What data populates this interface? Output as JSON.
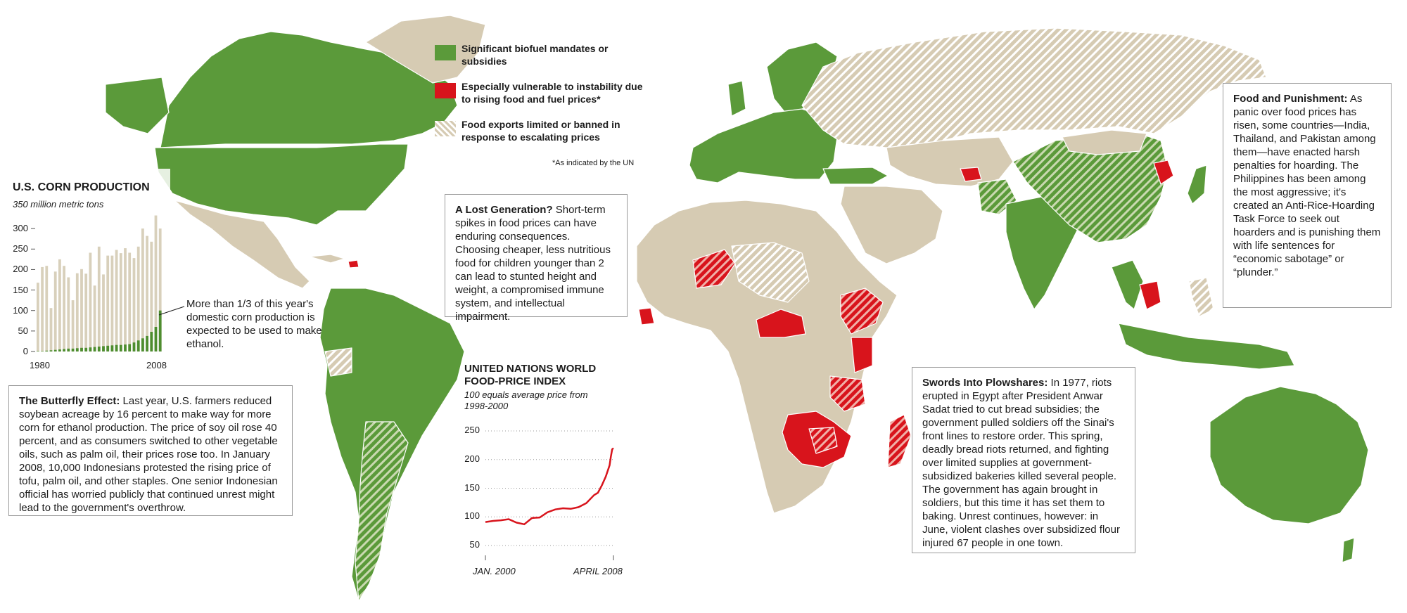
{
  "legend": {
    "biofuel": "Significant biofuel mandates or subsidies",
    "vulnerable": "Especially vulnerable to instability due to rising food and fuel prices*",
    "exports": "Food exports limited or banned in response to escalating prices",
    "footnote": "*As indicated by the UN"
  },
  "colors": {
    "biofuel": "#5b9a3a",
    "vulnerable": "#d8141c",
    "land": "#d6cbb3",
    "hatch": "#ffffff",
    "ocean": "#ffffff",
    "corn_light": "#d8d0bb",
    "corn_ethanol": "#4e8d2f",
    "fpi_line": "#d8141c"
  },
  "corn_chart": {
    "title": "U.S. CORN PRODUCTION",
    "subtitle": "350 million metric tons",
    "y_ticks": [
      "300",
      "250",
      "200",
      "150",
      "100",
      "50",
      "0"
    ],
    "x_labels": [
      "1980",
      "2008"
    ],
    "note": "More than 1/3 of this year's domestic corn production is expected to be used to make ethanol."
  },
  "fpi_chart": {
    "title": "UNITED NATIONS WORLD FOOD-PRICE INDEX",
    "subtitle": "100 equals average price from 1998-2000",
    "y_ticks": [
      "250",
      "200",
      "150",
      "100",
      "50"
    ],
    "x_labels": [
      "JAN. 2000",
      "APRIL 2008"
    ]
  },
  "chart_data": [
    {
      "type": "bar",
      "title": "U.S. CORN PRODUCTION",
      "ylabel": "350 million metric tons",
      "ylim": [
        0,
        350
      ],
      "categories": [
        1980,
        1981,
        1982,
        1983,
        1984,
        1985,
        1986,
        1987,
        1988,
        1989,
        1990,
        1991,
        1992,
        1993,
        1994,
        1995,
        1996,
        1997,
        1998,
        1999,
        2000,
        2001,
        2002,
        2003,
        2004,
        2005,
        2006,
        2007,
        2008
      ],
      "series": [
        {
          "values": [
            168,
            206,
            209,
            106,
            195,
            225,
            209,
            181,
            125,
            191,
            201,
            190,
            241,
            161,
            256,
            188,
            234,
            234,
            248,
            240,
            252,
            241,
            228,
            256,
            300,
            282,
            268,
            332,
            300
          ]
        },
        {
          "values": [
            1,
            1,
            2,
            3,
            4,
            5,
            6,
            7,
            7,
            8,
            9,
            9,
            10,
            11,
            12,
            13,
            14,
            15,
            16,
            16,
            17,
            18,
            22,
            27,
            32,
            38,
            48,
            60,
            100
          ]
        }
      ],
      "x_labels": [
        "1980",
        "2008"
      ]
    },
    {
      "type": "line",
      "title": "UNITED NATIONS WORLD FOOD-PRICE INDEX",
      "ylabel": "100 equals average price from 1998-2000",
      "ylim": [
        40,
        265
      ],
      "x": [
        "2000-01",
        "2000-07",
        "2001-01",
        "2001-07",
        "2002-01",
        "2002-07",
        "2003-01",
        "2003-07",
        "2004-01",
        "2004-07",
        "2005-01",
        "2005-07",
        "2006-01",
        "2006-07",
        "2007-01",
        "2007-04",
        "2007-07",
        "2007-10",
        "2008-01",
        "2008-02",
        "2008-03",
        "2008-04"
      ],
      "series": [
        {
          "values": [
            91,
            93,
            94,
            96,
            90,
            87,
            98,
            99,
            108,
            113,
            115,
            114,
            117,
            124,
            138,
            142,
            155,
            170,
            190,
            205,
            218,
            220
          ]
        }
      ],
      "x_labels": [
        "JAN. 2000",
        "APRIL 2008"
      ]
    }
  ],
  "boxes": {
    "butterfly": {
      "title": "The Butterfly Effect:",
      "text": " Last year, U.S. farmers reduced soybean acreage by 16 percent to make way for more corn for ethanol production. The price of soy oil rose 40 percent, and as consumers switched to other vegetable oils, such as palm oil, their prices rose too. In January 2008, 10,000 Indonesians protested the rising price of tofu, palm oil, and other staples. One senior Indonesian official has worried publicly that continued unrest might lead to the government's overthrow."
    },
    "lost": {
      "title": "A Lost Generation?",
      "text": " Short-term spikes in food prices can have enduring consequences. Choosing cheaper, less nutritious food for children younger than 2 can lead to stunted height and weight, a compromised immune system, and intellectual impairment."
    },
    "swords": {
      "title": "Swords Into Plowshares:",
      "text": " In 1977, riots erupted in Egypt after President Anwar Sadat tried to cut bread subsidies; the government pulled soldiers off the Sinai's front lines to restore order. This spring, deadly bread riots returned, and fighting over limited supplies at government-subsidized bakeries killed several people. The government has again brought in soldiers, but this time it has set them to baking. Unrest continues, however: in June, violent clashes over subsidized flour injured 67 people in one town."
    },
    "punishment": {
      "title": "Food and Punishment:",
      "text": " As panic over food prices has risen, some countries—India, Thailand, and Pakistan among them—have enacted harsh penalties for hoarding. The Philippines has been among the most aggressive; it's created an Anti-Rice-Hoarding Task Force to seek out hoarders and is punishing them with life sentences for “economic sabotage” or “plunder.”"
    }
  }
}
